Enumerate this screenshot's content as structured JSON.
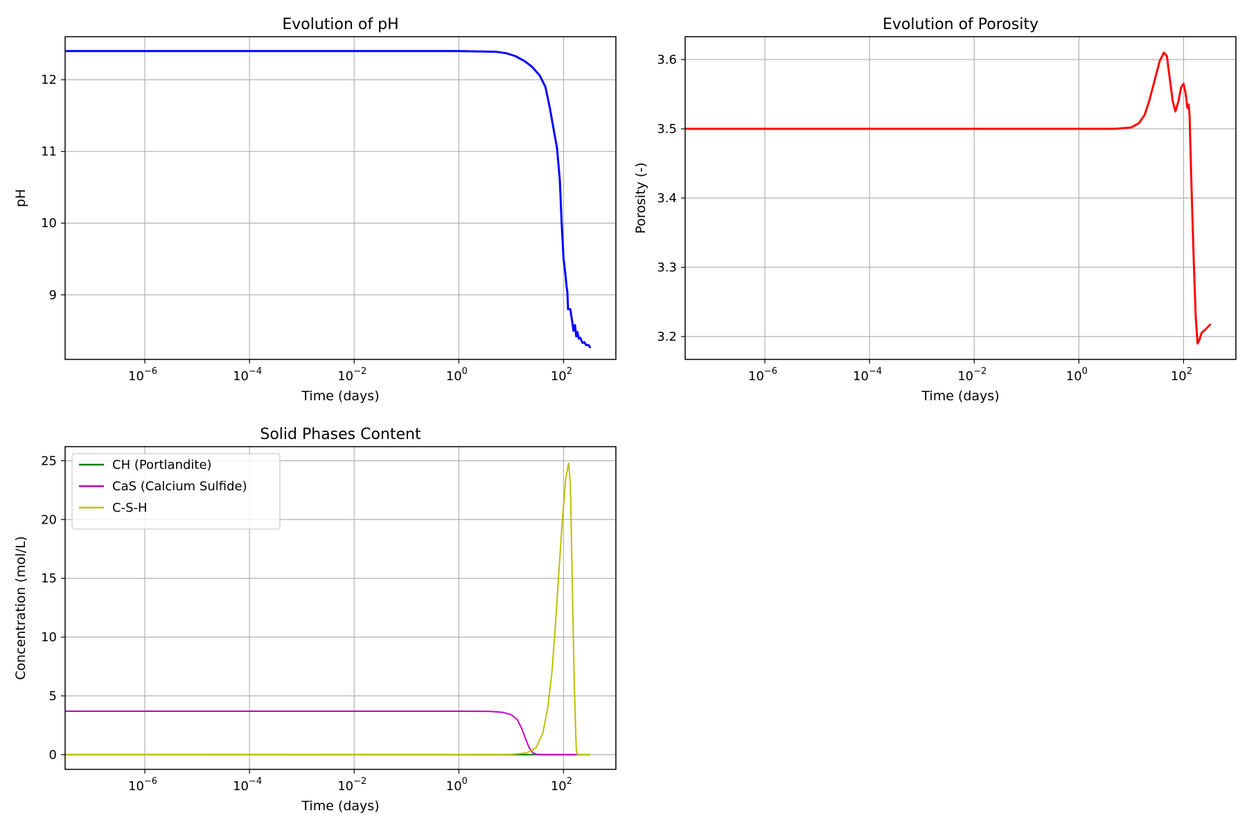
{
  "chart_data": [
    {
      "type": "line",
      "title": "Evolution of pH",
      "xlabel": "Time (days)",
      "ylabel": "pH",
      "xscale": "log",
      "xlim": [
        3e-08,
        1000
      ],
      "ylim": [
        8.1,
        12.6
      ],
      "grid": true,
      "x_ticks": [
        {
          "base": "10",
          "exp": "−6",
          "value": 1e-06
        },
        {
          "base": "10",
          "exp": "−4",
          "value": 0.0001
        },
        {
          "base": "10",
          "exp": "−2",
          "value": 0.01
        },
        {
          "base": "10",
          "exp": "0",
          "value": 1
        },
        {
          "base": "10",
          "exp": "2",
          "value": 100
        }
      ],
      "y_ticks": [
        9,
        10,
        11,
        12
      ],
      "series": [
        {
          "color": "#0000ff",
          "linewidth": 3,
          "points": [
            [
              3e-08,
              12.4
            ],
            [
              1,
              12.4
            ],
            [
              5,
              12.39
            ],
            [
              8,
              12.37
            ],
            [
              12,
              12.33
            ],
            [
              18,
              12.26
            ],
            [
              25,
              12.18
            ],
            [
              35,
              12.06
            ],
            [
              45,
              11.9
            ],
            [
              55,
              11.6
            ],
            [
              65,
              11.3
            ],
            [
              75,
              11.05
            ],
            [
              85,
              10.6
            ],
            [
              92,
              10.0
            ],
            [
              100,
              9.5
            ],
            [
              108,
              9.3
            ],
            [
              115,
              9.1
            ],
            [
              118,
              9.05
            ],
            [
              122,
              8.8
            ],
            [
              135,
              8.8
            ],
            [
              145,
              8.65
            ],
            [
              155,
              8.5
            ],
            [
              165,
              8.58
            ],
            [
              175,
              8.42
            ],
            [
              185,
              8.48
            ],
            [
              195,
              8.39
            ],
            [
              210,
              8.4
            ],
            [
              230,
              8.33
            ],
            [
              250,
              8.34
            ],
            [
              270,
              8.3
            ],
            [
              300,
              8.3
            ],
            [
              320,
              8.27
            ]
          ]
        }
      ]
    },
    {
      "type": "line",
      "title": "Evolution of Porosity",
      "xlabel": "Time (days)",
      "ylabel": "Porosity (-)",
      "xscale": "log",
      "xlim": [
        3e-08,
        1000
      ],
      "ylim": [
        3.167,
        3.633
      ],
      "grid": true,
      "x_ticks": [
        {
          "base": "10",
          "exp": "−6",
          "value": 1e-06
        },
        {
          "base": "10",
          "exp": "−4",
          "value": 0.0001
        },
        {
          "base": "10",
          "exp": "−2",
          "value": 0.01
        },
        {
          "base": "10",
          "exp": "0",
          "value": 1
        },
        {
          "base": "10",
          "exp": "2",
          "value": 100
        }
      ],
      "y_ticks": [
        "3.2",
        "3.3",
        "3.4",
        "3.5",
        "3.6"
      ],
      "series": [
        {
          "color": "#ff0000",
          "linewidth": 3,
          "points": [
            [
              3e-08,
              3.5
            ],
            [
              5,
              3.5
            ],
            [
              10,
              3.502
            ],
            [
              14,
              3.508
            ],
            [
              18,
              3.52
            ],
            [
              22,
              3.54
            ],
            [
              28,
              3.57
            ],
            [
              35,
              3.598
            ],
            [
              42,
              3.61
            ],
            [
              48,
              3.605
            ],
            [
              55,
              3.57
            ],
            [
              62,
              3.54
            ],
            [
              70,
              3.525
            ],
            [
              80,
              3.54
            ],
            [
              90,
              3.56
            ],
            [
              100,
              3.565
            ],
            [
              110,
              3.55
            ],
            [
              118,
              3.53
            ],
            [
              125,
              3.535
            ],
            [
              130,
              3.52
            ],
            [
              140,
              3.43
            ],
            [
              155,
              3.32
            ],
            [
              170,
              3.23
            ],
            [
              185,
              3.19
            ],
            [
              200,
              3.195
            ],
            [
              220,
              3.205
            ],
            [
              260,
              3.21
            ],
            [
              320,
              3.217
            ]
          ]
        }
      ]
    },
    {
      "type": "line",
      "title": "Solid Phases Content",
      "xlabel": "Time (days)",
      "ylabel": "Concentration (mol/L)",
      "xscale": "log",
      "xlim": [
        3e-08,
        1000
      ],
      "ylim": [
        -1.25,
        26.2
      ],
      "grid": true,
      "legend": "top-left",
      "x_ticks": [
        {
          "base": "10",
          "exp": "−6",
          "value": 1e-06
        },
        {
          "base": "10",
          "exp": "−4",
          "value": 0.0001
        },
        {
          "base": "10",
          "exp": "−2",
          "value": 0.01
        },
        {
          "base": "10",
          "exp": "0",
          "value": 1
        },
        {
          "base": "10",
          "exp": "2",
          "value": 100
        }
      ],
      "y_ticks": [
        0,
        5,
        10,
        15,
        20,
        25
      ],
      "series": [
        {
          "name": "CH (Portlandite)",
          "color": "#008000",
          "linewidth": 2,
          "points": [
            [
              3e-08,
              0
            ],
            [
              320,
              0
            ]
          ]
        },
        {
          "name": "CaS (Calcium Sulfide)",
          "color": "#c000c0",
          "linewidth": 2,
          "points": [
            [
              3e-08,
              3.7
            ],
            [
              1,
              3.7
            ],
            [
              4,
              3.68
            ],
            [
              7,
              3.6
            ],
            [
              10,
              3.4
            ],
            [
              13,
              3.0
            ],
            [
              16,
              2.2
            ],
            [
              19,
              1.3
            ],
            [
              22,
              0.6
            ],
            [
              26,
              0.15
            ],
            [
              30,
              0.03
            ],
            [
              40,
              0
            ],
            [
              200,
              0
            ]
          ]
        },
        {
          "name": "C-S-H",
          "color": "#bfbf00",
          "linewidth": 2,
          "points": [
            [
              3e-08,
              0
            ],
            [
              10,
              0.02
            ],
            [
              20,
              0.15
            ],
            [
              30,
              0.6
            ],
            [
              40,
              1.8
            ],
            [
              50,
              4
            ],
            [
              60,
              7
            ],
            [
              70,
              11
            ],
            [
              80,
              15
            ],
            [
              95,
              20
            ],
            [
              110,
              23.5
            ],
            [
              125,
              24.8
            ],
            [
              135,
              23
            ],
            [
              145,
              16
            ],
            [
              160,
              6
            ],
            [
              175,
              0.5
            ],
            [
              185,
              0
            ],
            [
              320,
              0
            ]
          ]
        }
      ]
    }
  ]
}
